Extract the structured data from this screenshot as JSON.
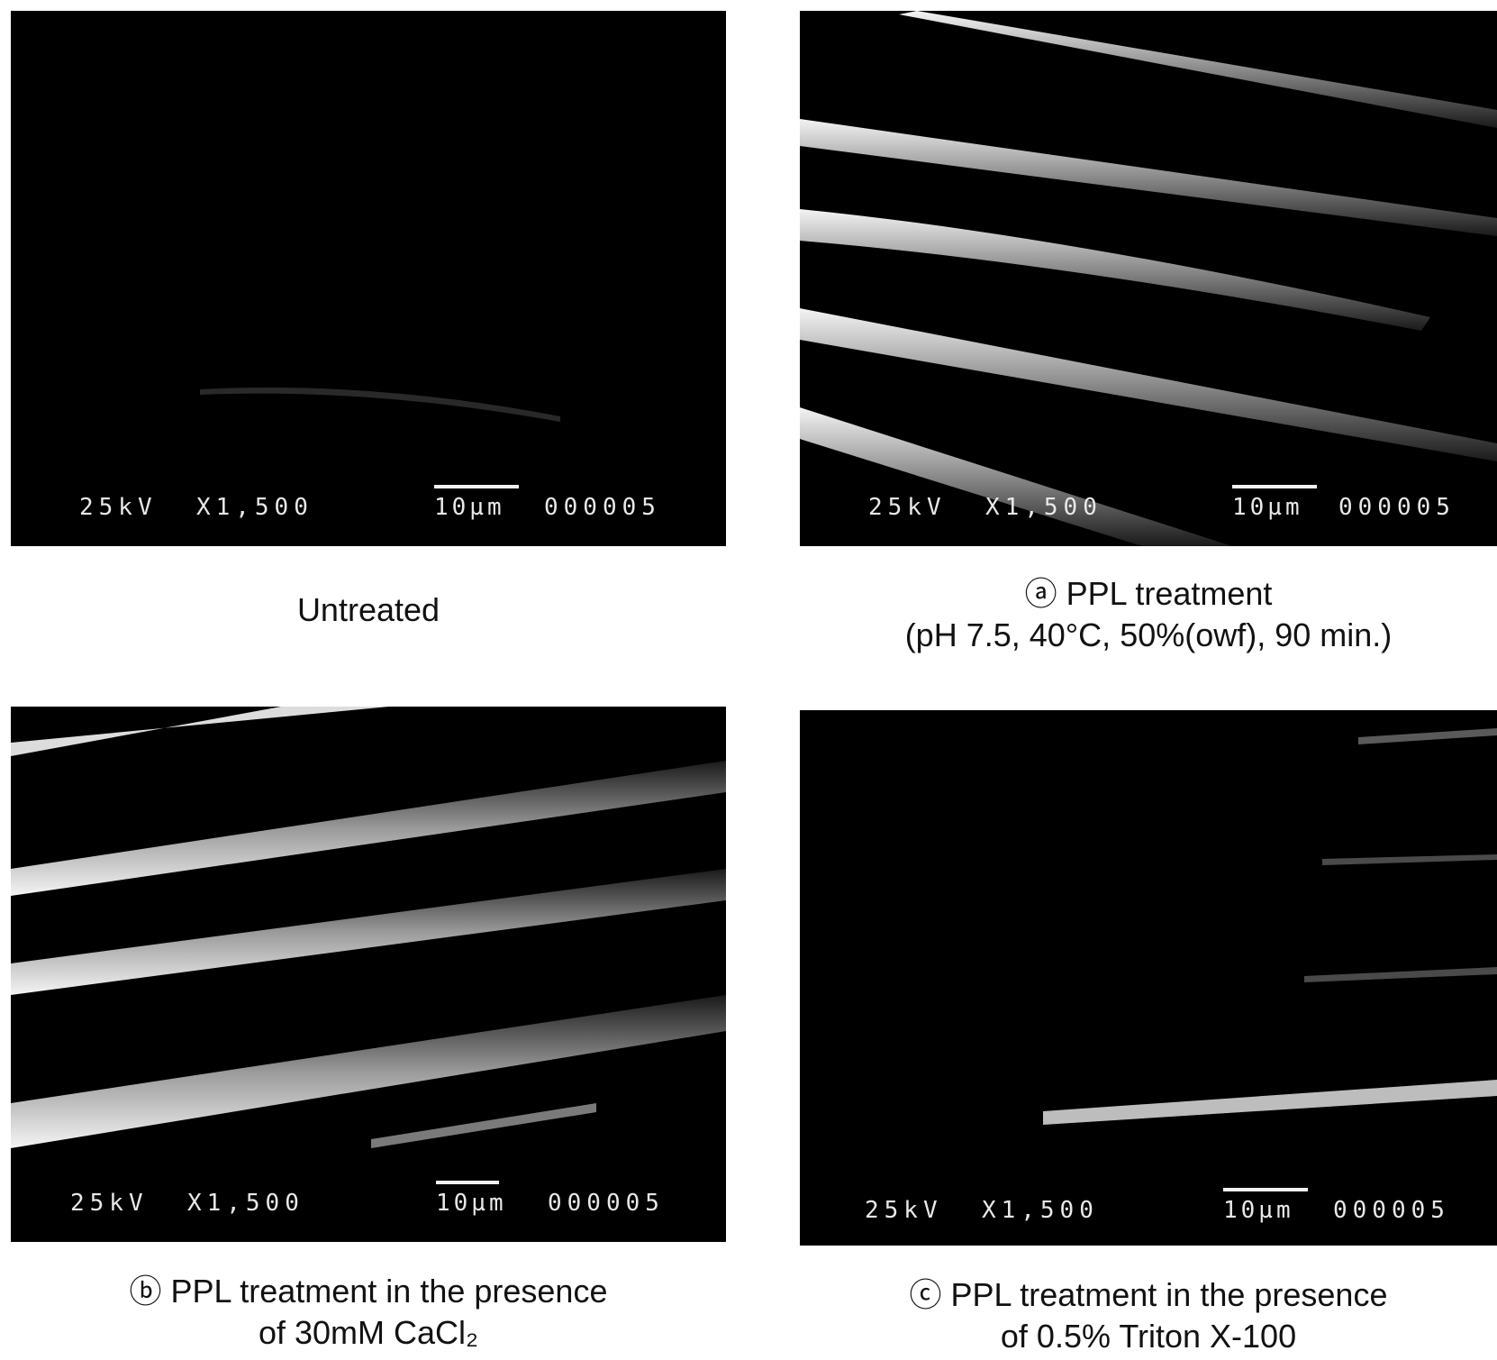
{
  "panels": [
    {
      "id": "untreated",
      "micrograph": {
        "accel_voltage": "25kV",
        "magnification": "X1,500",
        "scale": "10µm",
        "code": "000005"
      },
      "caption_lines": [
        "Untreated"
      ]
    },
    {
      "id": "a",
      "micrograph": {
        "accel_voltage": "25kV",
        "magnification": "X1,500",
        "scale": "10µm",
        "code": "000005"
      },
      "caption_lines": [
        "ⓐ PPL treatment",
        "(pH 7.5, 40°C, 50%(owf), 90 min.)"
      ]
    },
    {
      "id": "b",
      "micrograph": {
        "accel_voltage": "25kV",
        "magnification": "X1,500",
        "scale": "10µm",
        "code": "000005"
      },
      "caption_lines": [
        "ⓑ PPL treatment in the presence",
        "of 30mM CaCl₂"
      ]
    },
    {
      "id": "c",
      "micrograph": {
        "accel_voltage": "25kV",
        "magnification": "X1,500",
        "scale": "10µm",
        "code": "000005"
      },
      "caption_lines": [
        "ⓒ PPL treatment in the presence",
        "of 0.5% Triton X-100"
      ]
    }
  ]
}
